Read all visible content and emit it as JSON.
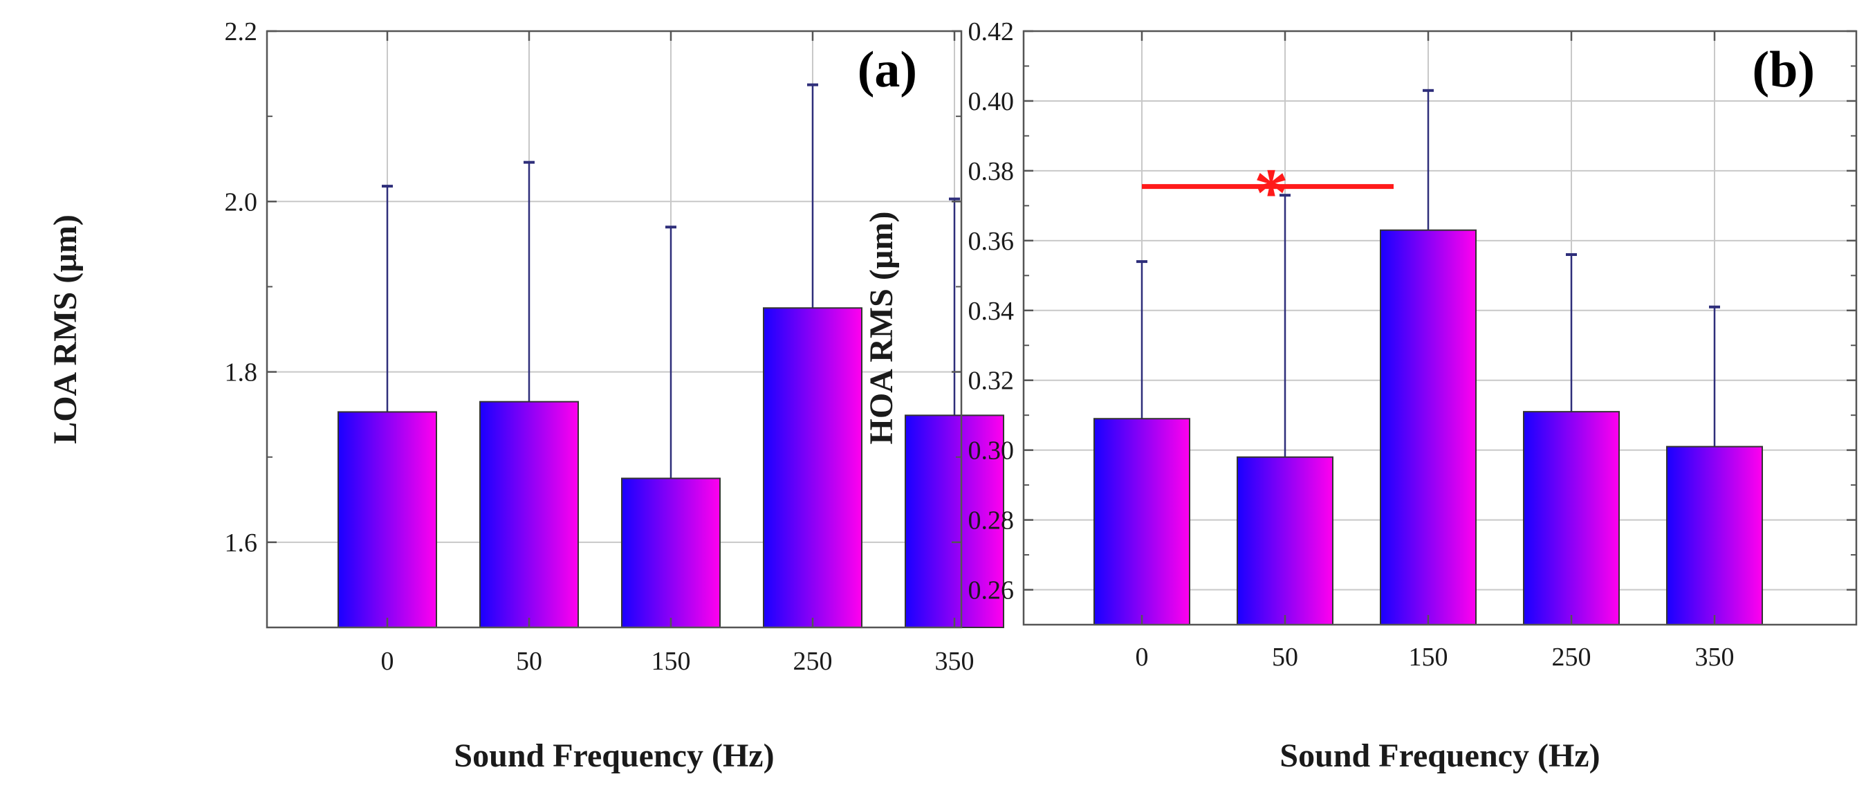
{
  "chart_data": [
    {
      "type": "bar",
      "panel_label": "(a)",
      "categories": [
        "0",
        "50",
        "150",
        "250",
        "350"
      ],
      "values": [
        1.753,
        1.765,
        1.675,
        1.875,
        1.749
      ],
      "error_upper": [
        2.018,
        2.046,
        1.97,
        2.137,
        2.003
      ],
      "ylim": [
        1.5,
        2.2
      ],
      "yticks": [
        1.6,
        1.8,
        2.0,
        2.2
      ],
      "ytick_labels": [
        "1.6",
        "1.8",
        "2.0",
        "2.2"
      ],
      "ylabel": "LOA RMS (µm)",
      "xlabel": "Sound Frequency (Hz)",
      "grid": true
    },
    {
      "type": "bar",
      "panel_label": "(b)",
      "categories": [
        "0",
        "50",
        "150",
        "250",
        "350"
      ],
      "values": [
        0.309,
        0.298,
        0.363,
        0.311,
        0.301
      ],
      "error_upper": [
        0.354,
        0.373,
        0.403,
        0.356,
        0.341
      ],
      "ylim": [
        0.25,
        0.42
      ],
      "yticks": [
        0.26,
        0.28,
        0.3,
        0.32,
        0.34,
        0.36,
        0.38,
        0.4,
        0.42
      ],
      "ytick_labels": [
        "0.26",
        "0.28",
        "0.30",
        "0.32",
        "0.34",
        "0.36",
        "0.38",
        "0.40",
        "0.42"
      ],
      "ylabel": "HOA RMS (µm)",
      "xlabel": "Sound Frequency (Hz)",
      "grid": true,
      "significance": {
        "from": "0",
        "to": "150",
        "y": 0.3755,
        "symbol": "*"
      }
    }
  ],
  "colors": {
    "bar_start": "#1a00ff",
    "bar_end": "#ff00ee",
    "error": "#2e2e7a",
    "grid": "#c8c8c8",
    "significance": "#ff1a1a"
  }
}
